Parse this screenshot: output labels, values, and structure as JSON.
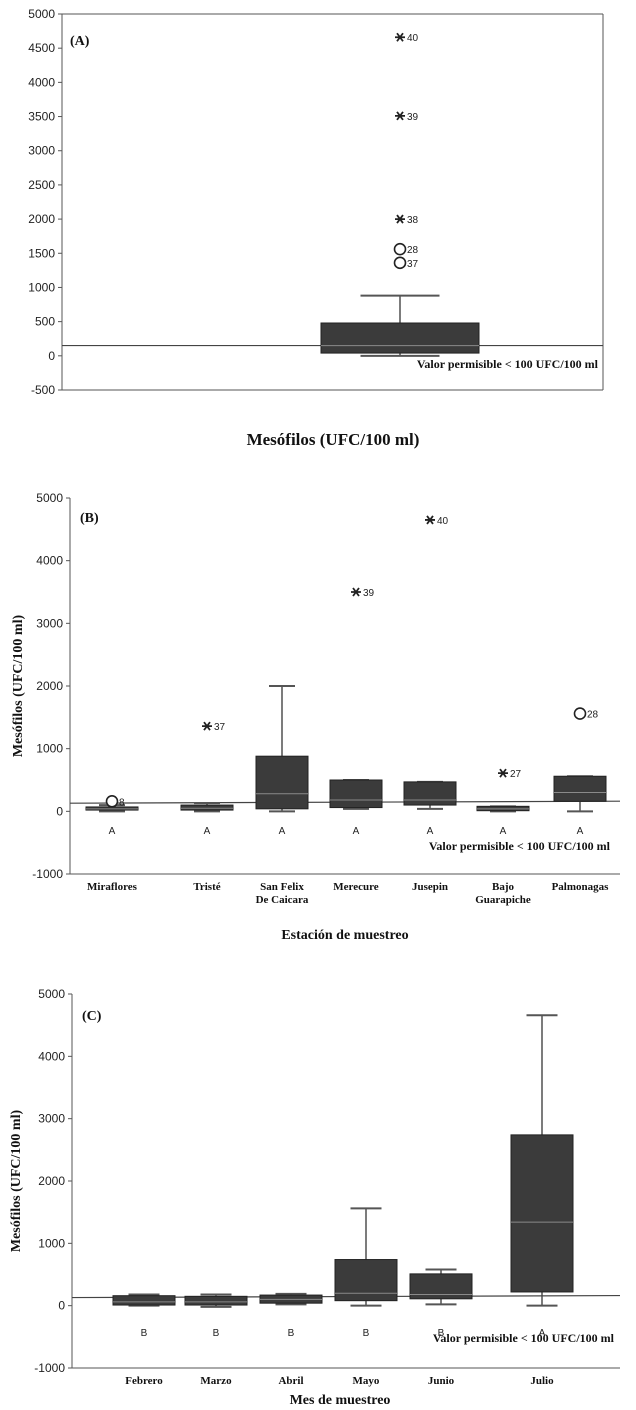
{
  "chart_data": [
    {
      "type": "box",
      "panel_label": "(A)",
      "xlabel": "Mesófilos (UFC/100 ml)",
      "ylabel": "",
      "ylim": [
        -500,
        5000
      ],
      "yticks": [
        -500,
        0,
        500,
        1000,
        1500,
        2000,
        2500,
        3000,
        3500,
        4000,
        4500,
        5000
      ],
      "reference_line": {
        "value": 150,
        "label": "Valor permisible < 100 UFC/100 ml"
      },
      "boxes": [
        {
          "category": "",
          "min": 0,
          "q1": 40,
          "median": 150,
          "q3": 480,
          "max": 880,
          "outliers": [
            {
              "value": 4660,
              "label": "40",
              "kind": "extreme"
            },
            {
              "value": 3510,
              "label": "39",
              "kind": "extreme"
            },
            {
              "value": 2000,
              "label": "38",
              "kind": "extreme"
            },
            {
              "value": 1560,
              "label": "28",
              "kind": "outlier"
            },
            {
              "value": 1360,
              "label": "37",
              "kind": "outlier"
            }
          ]
        }
      ]
    },
    {
      "type": "box",
      "panel_label": "(B)",
      "xlabel": "Estación de muestreo",
      "ylabel": "Mesófilos (UFC/100 ml)",
      "ylim": [
        -1000,
        5000
      ],
      "yticks": [
        -1000,
        0,
        1000,
        2000,
        3000,
        4000,
        5000
      ],
      "reference_line": {
        "value": 130,
        "label": "Valor permisible < 100 UFC/100 ml"
      },
      "boxes": [
        {
          "category": "Miraflores",
          "group": "A",
          "min": 0,
          "q1": 20,
          "median": 40,
          "q3": 70,
          "max": 100,
          "outliers": [
            {
              "value": 160,
              "label": "8",
              "kind": "outlier"
            }
          ]
        },
        {
          "category": "Tristé",
          "group": "A",
          "min": 0,
          "q1": 20,
          "median": 50,
          "q3": 100,
          "max": 130,
          "outliers": [
            {
              "value": 1360,
              "label": "37",
              "kind": "extreme"
            }
          ]
        },
        {
          "category": "San Felix De Caicara",
          "group": "A",
          "min": 0,
          "q1": 40,
          "median": 280,
          "q3": 880,
          "max": 2000,
          "outliers": []
        },
        {
          "category": "Merecure",
          "group": "A",
          "min": 40,
          "q1": 60,
          "median": 180,
          "q3": 500,
          "max": 500,
          "outliers": [
            {
              "value": 3500,
              "label": "39",
              "kind": "extreme"
            }
          ]
        },
        {
          "category": "Jusepin",
          "group": "A",
          "min": 40,
          "q1": 100,
          "median": 180,
          "q3": 470,
          "max": 470,
          "outliers": [
            {
              "value": 4650,
              "label": "40",
              "kind": "extreme"
            }
          ]
        },
        {
          "category": "Bajo Guarapiche",
          "group": "A",
          "min": 0,
          "q1": 10,
          "median": 40,
          "q3": 80,
          "max": 80,
          "outliers": [
            {
              "value": 610,
              "label": "27",
              "kind": "extreme"
            }
          ]
        },
        {
          "category": "Palmonagas",
          "group": "A",
          "min": 0,
          "q1": 160,
          "median": 300,
          "q3": 560,
          "max": 560,
          "outliers": [
            {
              "value": 1560,
              "label": "28",
              "kind": "outlier"
            }
          ]
        }
      ]
    },
    {
      "type": "box",
      "panel_label": "(C)",
      "xlabel": "Mes de muestreo",
      "ylabel": "Mesófilos (UFC/100 ml)",
      "ylim": [
        -1000,
        5000
      ],
      "yticks": [
        -1000,
        0,
        1000,
        2000,
        3000,
        4000,
        5000
      ],
      "reference_line": {
        "value": 130,
        "label": "Valor permisible < 100 UFC/100 ml"
      },
      "boxes": [
        {
          "category": "Febrero",
          "group": "B",
          "min": 0,
          "q1": 10,
          "median": 60,
          "q3": 160,
          "max": 180,
          "outliers": []
        },
        {
          "category": "Marzo",
          "group": "B",
          "min": -20,
          "q1": 10,
          "median": 60,
          "q3": 150,
          "max": 180,
          "outliers": []
        },
        {
          "category": "Abril",
          "group": "B",
          "min": 20,
          "q1": 40,
          "median": 100,
          "q3": 170,
          "max": 190,
          "outliers": []
        },
        {
          "category": "Mayo",
          "group": "B",
          "min": 0,
          "q1": 80,
          "median": 200,
          "q3": 740,
          "max": 1560,
          "outliers": []
        },
        {
          "category": "Junio",
          "group": "B",
          "min": 20,
          "q1": 110,
          "median": 180,
          "q3": 510,
          "max": 580,
          "outliers": []
        },
        {
          "category": "Julio",
          "group": "A",
          "min": 0,
          "q1": 220,
          "median": 1340,
          "q3": 2740,
          "max": 4660,
          "outliers": []
        }
      ]
    }
  ]
}
